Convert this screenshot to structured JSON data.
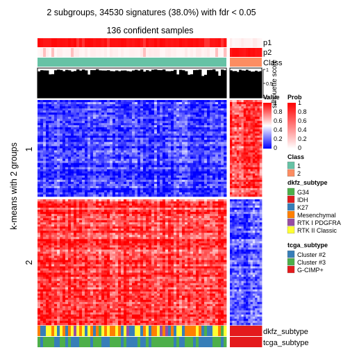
{
  "chart_data": {
    "type": "heatmap",
    "title": "2 subgroups, 34530 signatures (38.0%) with fdr < 0.05",
    "subtitle": "136 confident samples",
    "ylabel": "k-means with 2 groups",
    "row_groups": [
      "1",
      "2"
    ],
    "annotation_tracks": {
      "top": [
        "p1",
        "p2",
        "Class",
        "silhouette score"
      ],
      "bottom": [
        "dkfz_subtype",
        "tcga_subtype"
      ]
    },
    "silhouette_axis": {
      "ticks": [
        "0",
        "0.5",
        "1"
      ],
      "range": [
        0,
        1
      ],
      "cutoff_dashed": 0.5
    },
    "column_groups": [
      {
        "class": "1",
        "p1": 1,
        "p2": 0,
        "silhouette_approx": 0.96,
        "dkfz_mixed": true,
        "tcga_mixed": true
      },
      {
        "class": "2",
        "p1": 0,
        "p2": 1,
        "silhouette_approx": 0.95,
        "dkfz_subtype": "IDH",
        "tcga_subtype": "G-CIMP+"
      }
    ],
    "expression": {
      "row_group_1_column_group_1": "low (blue)",
      "row_group_1_column_group_2": "high (red)",
      "row_group_2_column_group_1": "high (red)",
      "row_group_2_column_group_2": "low (blue)"
    },
    "legends": {
      "value": {
        "title": "Value",
        "ticks": [
          "1",
          "0.8",
          "0.6",
          "0.4",
          "0.2",
          "0"
        ],
        "colors": {
          "low": "#0000ff",
          "mid": "#ffffff",
          "high": "#ff0000"
        }
      },
      "prob": {
        "title": "Prob",
        "ticks": [
          "1",
          "0.8",
          "0.6",
          "0.4",
          "0.2",
          "0"
        ],
        "colors": {
          "low": "#ffffff",
          "high": "#ff0000"
        }
      },
      "class": {
        "title": "Class",
        "items": [
          {
            "label": "1",
            "color": "#66c2a5"
          },
          {
            "label": "2",
            "color": "#fc8d62"
          }
        ]
      },
      "dkfz_subtype": {
        "title": "dkfz_subtype",
        "items": [
          {
            "label": "G34",
            "color": "#4daf4a"
          },
          {
            "label": "IDH",
            "color": "#e41a1c"
          },
          {
            "label": "K27",
            "color": "#377eb8"
          },
          {
            "label": "Mesenchymal",
            "color": "#ff7f00"
          },
          {
            "label": "RTK I PDGFRA",
            "color": "#984ea3"
          },
          {
            "label": "RTK II Classic",
            "color": "#ffff33"
          }
        ]
      },
      "tcga_subtype": {
        "title": "tcga_subtype",
        "items": [
          {
            "label": "Cluster #2",
            "color": "#377eb8"
          },
          {
            "label": "Cluster #3",
            "color": "#4daf4a"
          },
          {
            "label": "G-CIMP+",
            "color": "#e41a1c"
          }
        ]
      }
    }
  }
}
